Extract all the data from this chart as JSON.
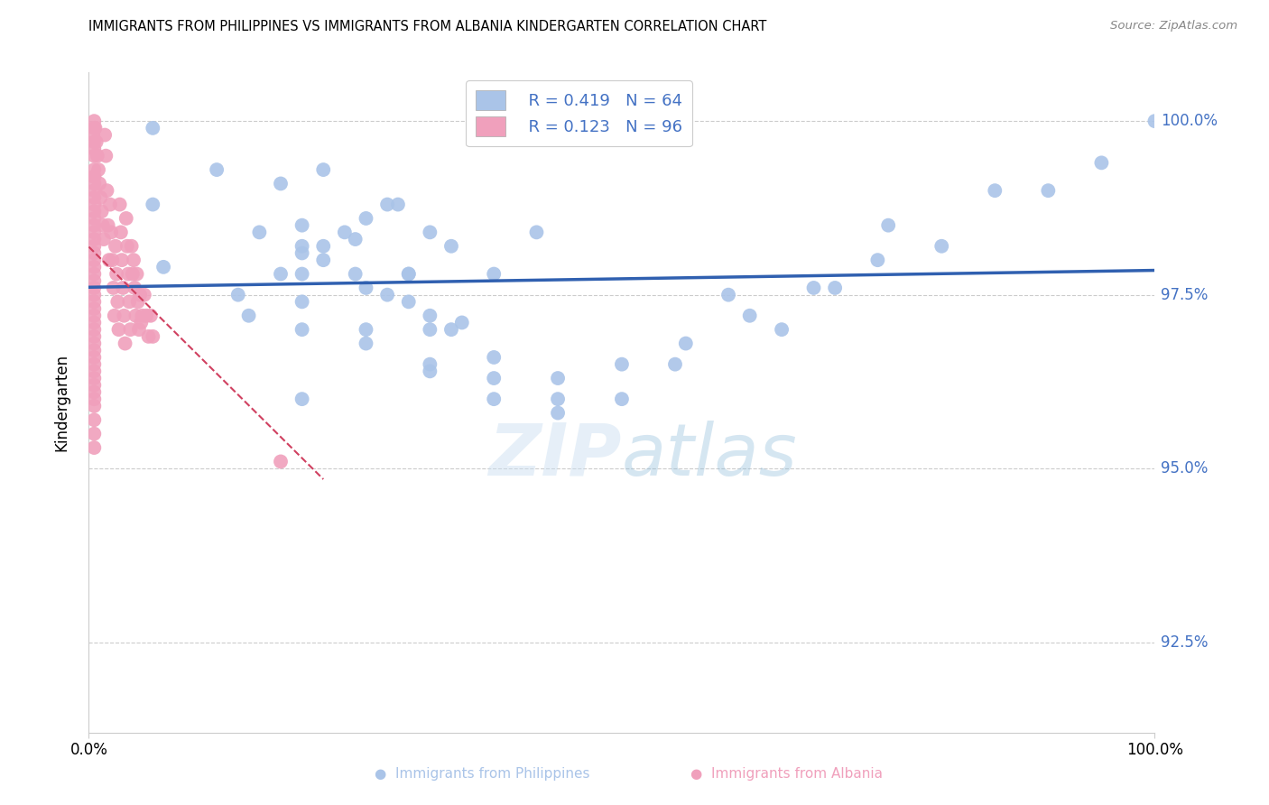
{
  "title": "IMMIGRANTS FROM PHILIPPINES VS IMMIGRANTS FROM ALBANIA KINDERGARTEN CORRELATION CHART",
  "source": "Source: ZipAtlas.com",
  "ylabel": "Kindergarten",
  "ytick_values": [
    1.0,
    0.975,
    0.95,
    0.925
  ],
  "xlim": [
    0.0,
    1.0
  ],
  "ylim": [
    0.912,
    1.007
  ],
  "philippines_color": "#aac4e8",
  "albania_color": "#f0a0bc",
  "philippines_line_color": "#3060b0",
  "albania_line_color": "#d04060",
  "axis_color": "#4472c4",
  "grid_color": "#cccccc",
  "philippines_x": [
    0.06,
    0.12,
    0.18,
    0.06,
    0.2,
    0.25,
    0.29,
    0.22,
    0.18,
    0.3,
    0.32,
    0.07,
    0.14,
    0.2,
    0.26,
    0.3,
    0.15,
    0.2,
    0.24,
    0.32,
    0.38,
    0.42,
    0.22,
    0.28,
    0.34,
    0.25,
    0.3,
    0.2,
    0.26,
    0.34,
    0.16,
    0.22,
    0.28,
    0.32,
    0.38,
    0.44,
    0.5,
    0.2,
    0.26,
    0.32,
    0.38,
    0.44,
    0.2,
    0.26,
    0.32,
    0.38,
    0.44,
    0.55,
    0.65,
    0.7,
    0.8,
    0.9,
    0.95,
    1.0,
    0.6,
    0.75,
    0.85,
    0.5,
    0.56,
    0.62,
    0.68,
    0.74,
    0.2,
    0.35
  ],
  "philippines_y": [
    0.999,
    0.993,
    0.991,
    0.988,
    0.985,
    0.983,
    0.988,
    0.982,
    0.978,
    0.978,
    0.984,
    0.979,
    0.975,
    0.981,
    0.986,
    0.978,
    0.972,
    0.978,
    0.984,
    0.972,
    0.978,
    0.984,
    0.993,
    0.988,
    0.982,
    0.978,
    0.974,
    0.982,
    0.976,
    0.97,
    0.984,
    0.98,
    0.975,
    0.97,
    0.966,
    0.963,
    0.96,
    0.974,
    0.97,
    0.965,
    0.963,
    0.96,
    0.97,
    0.968,
    0.964,
    0.96,
    0.958,
    0.965,
    0.97,
    0.976,
    0.982,
    0.99,
    0.994,
    1.0,
    0.975,
    0.985,
    0.99,
    0.965,
    0.968,
    0.972,
    0.976,
    0.98,
    0.96,
    0.971
  ],
  "albania_x": [
    0.004,
    0.005,
    0.005,
    0.005,
    0.006,
    0.007,
    0.008,
    0.009,
    0.01,
    0.011,
    0.012,
    0.013,
    0.014,
    0.015,
    0.016,
    0.017,
    0.018,
    0.019,
    0.02,
    0.021,
    0.022,
    0.023,
    0.024,
    0.025,
    0.026,
    0.027,
    0.028,
    0.029,
    0.03,
    0.031,
    0.032,
    0.033,
    0.034,
    0.035,
    0.036,
    0.037,
    0.038,
    0.039,
    0.04,
    0.041,
    0.042,
    0.043,
    0.044,
    0.045,
    0.046,
    0.047,
    0.048,
    0.049,
    0.05,
    0.052,
    0.054,
    0.056,
    0.058,
    0.06,
    0.005,
    0.005,
    0.005,
    0.005,
    0.005,
    0.005,
    0.005,
    0.005,
    0.005,
    0.005,
    0.005,
    0.005,
    0.005,
    0.005,
    0.005,
    0.005,
    0.005,
    0.005,
    0.005,
    0.005,
    0.005,
    0.005,
    0.005,
    0.005,
    0.18,
    0.005,
    0.005,
    0.005,
    0.005,
    0.005,
    0.005,
    0.005,
    0.005,
    0.005,
    0.005,
    0.005,
    0.005,
    0.005,
    0.005,
    0.005,
    0.005,
    0.005
  ],
  "albania_y": [
    0.998,
    1.0,
    0.996,
    0.992,
    0.999,
    0.997,
    0.995,
    0.993,
    0.991,
    0.989,
    0.987,
    0.985,
    0.983,
    0.998,
    0.995,
    0.99,
    0.985,
    0.98,
    0.988,
    0.984,
    0.98,
    0.976,
    0.972,
    0.982,
    0.978,
    0.974,
    0.97,
    0.988,
    0.984,
    0.98,
    0.976,
    0.972,
    0.968,
    0.986,
    0.982,
    0.978,
    0.974,
    0.97,
    0.982,
    0.978,
    0.98,
    0.976,
    0.972,
    0.978,
    0.974,
    0.97,
    0.975,
    0.971,
    0.972,
    0.975,
    0.972,
    0.969,
    0.972,
    0.969,
    0.999,
    0.997,
    0.995,
    0.993,
    0.991,
    0.989,
    0.987,
    0.985,
    0.983,
    0.981,
    0.979,
    0.977,
    0.975,
    0.973,
    0.971,
    0.969,
    0.967,
    0.965,
    0.963,
    0.961,
    0.959,
    0.957,
    0.955,
    0.953,
    0.951,
    0.992,
    0.99,
    0.988,
    0.986,
    0.984,
    0.982,
    0.98,
    0.978,
    0.976,
    0.974,
    0.972,
    0.97,
    0.968,
    0.966,
    0.964,
    0.962,
    0.96
  ]
}
